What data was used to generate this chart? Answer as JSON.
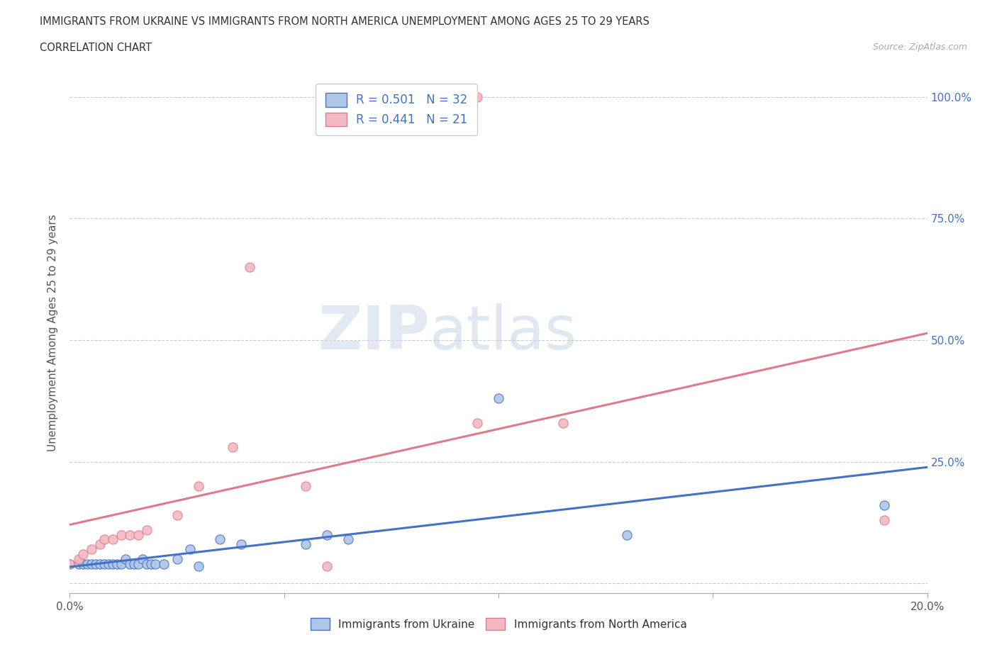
{
  "title_line1": "IMMIGRANTS FROM UKRAINE VS IMMIGRANTS FROM NORTH AMERICA UNEMPLOYMENT AMONG AGES 25 TO 29 YEARS",
  "title_line2": "CORRELATION CHART",
  "source_text": "Source: ZipAtlas.com",
  "ylabel": "Unemployment Among Ages 25 to 29 years",
  "watermark_text": "ZIPatlas",
  "xlim": [
    0.0,
    0.2
  ],
  "ylim": [
    -0.02,
    1.05
  ],
  "yticks": [
    0.0,
    0.25,
    0.5,
    0.75,
    1.0
  ],
  "ytick_labels": [
    "",
    "25.0%",
    "50.0%",
    "75.0%",
    "100.0%"
  ],
  "xticks": [
    0.0,
    0.05,
    0.1,
    0.15,
    0.2
  ],
  "xtick_labels": [
    "0.0%",
    "",
    "",
    "",
    "20.0%"
  ],
  "ukraine_R": 0.501,
  "ukraine_N": 32,
  "na_R": 0.441,
  "na_N": 21,
  "ukraine_color": "#aec6e8",
  "ukraine_line_color": "#4472c4",
  "na_color": "#f4b8c1",
  "na_line_color": "#e07a8a",
  "ukraine_x": [
    0.0,
    0.002,
    0.003,
    0.004,
    0.005,
    0.006,
    0.007,
    0.008,
    0.009,
    0.01,
    0.011,
    0.012,
    0.013,
    0.014,
    0.015,
    0.016,
    0.017,
    0.018,
    0.019,
    0.02,
    0.022,
    0.025,
    0.028,
    0.03,
    0.035,
    0.04,
    0.055,
    0.06,
    0.065,
    0.1,
    0.13,
    0.19
  ],
  "ukraine_y": [
    0.04,
    0.04,
    0.04,
    0.04,
    0.04,
    0.04,
    0.04,
    0.04,
    0.04,
    0.04,
    0.04,
    0.04,
    0.05,
    0.04,
    0.04,
    0.04,
    0.05,
    0.04,
    0.04,
    0.04,
    0.04,
    0.05,
    0.07,
    0.035,
    0.09,
    0.08,
    0.08,
    0.1,
    0.09,
    0.38,
    0.1,
    0.16
  ],
  "na_x": [
    0.0,
    0.002,
    0.003,
    0.005,
    0.007,
    0.008,
    0.01,
    0.012,
    0.014,
    0.016,
    0.018,
    0.025,
    0.03,
    0.038,
    0.042,
    0.055,
    0.06,
    0.095,
    0.095,
    0.115,
    0.19
  ],
  "na_y": [
    0.04,
    0.05,
    0.06,
    0.07,
    0.08,
    0.09,
    0.09,
    0.1,
    0.1,
    0.1,
    0.11,
    0.14,
    0.2,
    0.28,
    0.65,
    0.2,
    0.035,
    1.0,
    0.33,
    0.33,
    0.13
  ],
  "legend_label_ukraine": "Immigrants from Ukraine",
  "legend_label_na": "Immigrants from North America",
  "background_color": "#ffffff",
  "grid_color": "#cccccc"
}
